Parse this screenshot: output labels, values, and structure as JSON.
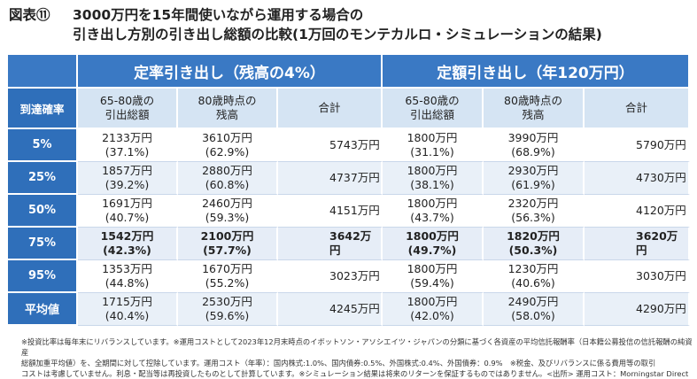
{
  "title": {
    "figure_label": "図表⑪",
    "line1": "3000万円を15年間使いながら運用する場合の",
    "line2": "引き出し方別の引き出し総額の比較(1万回のモンテカルロ・シミュレーションの結果)"
  },
  "table": {
    "group_headers": [
      "定率引き出し（残高の4%）",
      "定額引き出し（年120万円）"
    ],
    "row_header_label": "到達確率",
    "column_headers": [
      [
        "65-80歳の",
        "引出総額"
      ],
      [
        "80歳時点の",
        "残高"
      ],
      [
        "合計"
      ],
      [
        "65-80歳の",
        "引出総額"
      ],
      [
        "80歳時点の",
        "残高"
      ],
      [
        "合計"
      ]
    ],
    "rows": [
      {
        "label": "5%",
        "cells": [
          [
            "2133万円",
            "(37.1%)"
          ],
          [
            "3610万円",
            "(62.9%)"
          ],
          [
            "5743万円"
          ],
          [
            "1800万円",
            "(31.1%)"
          ],
          [
            "3990万円",
            "(68.9%)"
          ],
          [
            "5790万円"
          ]
        ]
      },
      {
        "label": "25%",
        "cells": [
          [
            "1857万円",
            "(39.2%)"
          ],
          [
            "2880万円",
            "(60.8%)"
          ],
          [
            "4737万円"
          ],
          [
            "1800万円",
            "(38.1%)"
          ],
          [
            "2930万円",
            "(61.9%)"
          ],
          [
            "4730万円"
          ]
        ]
      },
      {
        "label": "50%",
        "cells": [
          [
            "1691万円",
            "(40.7%)"
          ],
          [
            "2460万円",
            "(59.3%)"
          ],
          [
            "4151万円"
          ],
          [
            "1800万円",
            "(43.7%)"
          ],
          [
            "2320万円",
            "(56.3%)"
          ],
          [
            "4120万円"
          ]
        ]
      },
      {
        "label": "75%",
        "highlight": true,
        "cells": [
          [
            "1542万円",
            "(42.3%)"
          ],
          [
            "2100万円",
            "(57.7%)"
          ],
          [
            "3642万円"
          ],
          [
            "1800万円",
            "(49.7%)"
          ],
          [
            "1820万円",
            "(50.3%)"
          ],
          [
            "3620万円"
          ]
        ]
      },
      {
        "label": "95%",
        "cells": [
          [
            "1353万円",
            "(44.8%)"
          ],
          [
            "1670万円",
            "(55.2%)"
          ],
          [
            "3023万円"
          ],
          [
            "1800万円",
            "(59.4%)"
          ],
          [
            "1230万円",
            "(40.6%)"
          ],
          [
            "3030万円"
          ]
        ]
      },
      {
        "label": "平均値",
        "cells": [
          [
            "1715万円",
            "(40.4%)"
          ],
          [
            "2530万円",
            "(59.6%)"
          ],
          [
            "4245万円"
          ],
          [
            "1800万円",
            "(42.0%)"
          ],
          [
            "2490万円",
            "(58.0%)"
          ],
          [
            "4290万円"
          ]
        ]
      }
    ]
  },
  "footnote": {
    "line1": "※投資比率は毎年末にリバランスしています。※運用コストとして2023年12月末時点のイボットソン・アソシエイツ・ジャパンの分類に基づく各資産の平均信託報酬率（日本籍公募投信の信託報酬の純資産",
    "line2": "総額加重平均値）を、全期間に対して控除しています。運用コスト（年率）：国内株式:1.0%、国内債券:0.5%、外国株式:0.4%、外国債券：0.9%　※税金、及びリバランスに係る費用等の取引",
    "line3": "コストは考慮していません。利息・配当等は再投資したものとして計算しています。※シミュレーション結果は将来のリターンを保証するものではありません。<出所> 運用コスト：Morningstar Direct"
  },
  "colors": {
    "header_blue": "#3a79c4",
    "row_label_blue": "#2f6fba",
    "subheader_light_blue": "#d5e4f3",
    "stripe_light_blue": "#e9f0f8"
  }
}
